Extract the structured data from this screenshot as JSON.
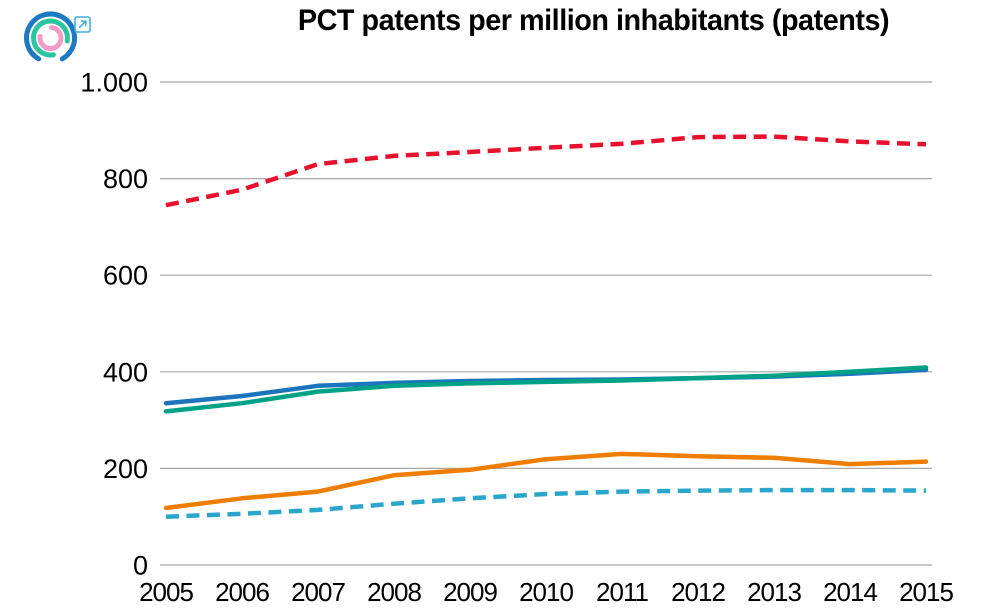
{
  "brand": {
    "logo_name": "concentric-arcs-logo",
    "logo_colors": {
      "outer": "#1b7ac2",
      "middle": "#2cc5a2",
      "inner": "#f49cc8"
    },
    "external_link_color": "#3fb0d8"
  },
  "colors": {
    "gridline": "#a8a8a8",
    "text": "#000000",
    "background": "#ffffff"
  },
  "chart_data": {
    "type": "line",
    "title": "PCT patents per million inhabitants (patents)",
    "xlabel": "",
    "ylabel": "",
    "x_labels": [
      "2005",
      "2006",
      "2007",
      "2008",
      "2009",
      "2010",
      "2011",
      "2012",
      "2013",
      "2014",
      "2015"
    ],
    "ylim": [
      0,
      1000
    ],
    "yticks": [
      0,
      200,
      400,
      600,
      800,
      1000
    ],
    "ytick_labels": [
      "0",
      "200",
      "400",
      "600",
      "800",
      "1.000"
    ],
    "grid": "horizontal-only",
    "legend": "none",
    "series": [
      {
        "name": "red-dashed-line",
        "color": "#e8112d",
        "style": "dashed",
        "values": [
          745,
          777,
          830,
          847,
          855,
          864,
          872,
          886,
          887,
          877,
          871
        ]
      },
      {
        "name": "blue-solid-line",
        "color": "#1c75bc",
        "style": "solid",
        "values": [
          335,
          350,
          371,
          377,
          381,
          383,
          384,
          387,
          390,
          396,
          404
        ]
      },
      {
        "name": "green-solid-line",
        "color": "#00a287",
        "style": "solid",
        "values": [
          318,
          335,
          359,
          371,
          376,
          379,
          382,
          387,
          392,
          400,
          409
        ]
      },
      {
        "name": "orange-solid-line",
        "color": "#ef7d00",
        "style": "solid",
        "values": [
          118,
          138,
          152,
          186,
          197,
          219,
          230,
          225,
          222,
          209,
          214
        ]
      },
      {
        "name": "cyan-dashed-line",
        "color": "#2ba6cb",
        "style": "dashed",
        "values": [
          100,
          106,
          114,
          127,
          138,
          147,
          152,
          154,
          155,
          155,
          154
        ]
      }
    ]
  }
}
